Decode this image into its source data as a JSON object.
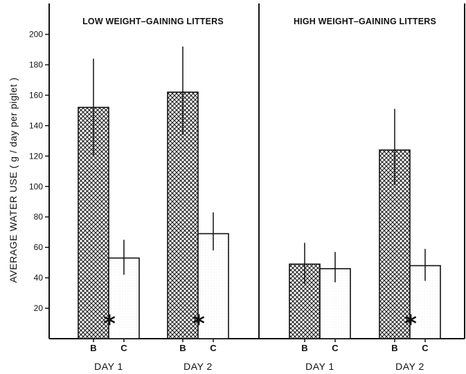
{
  "chart_data": {
    "type": "bar",
    "ylabel": "AVERAGE WATER USE ( g / day per piglet )",
    "ylim": [
      0,
      210
    ],
    "yticks": [
      20,
      40,
      60,
      80,
      100,
      120,
      140,
      160,
      180,
      200
    ],
    "bar_categories": [
      "B",
      "C"
    ],
    "panels": [
      {
        "title": "LOW WEIGHT–GAINING LITTERS",
        "days": [
          {
            "label": "DAY 1",
            "bars": [
              {
                "category": "B",
                "value": 152,
                "error_low": 120,
                "error_high": 184,
                "significant": false
              },
              {
                "category": "C",
                "value": 53,
                "error_low": 42,
                "error_high": 65,
                "significant": true
              }
            ]
          },
          {
            "label": "DAY 2",
            "bars": [
              {
                "category": "B",
                "value": 162,
                "error_low": 134,
                "error_high": 192,
                "significant": false
              },
              {
                "category": "C",
                "value": 69,
                "error_low": 58,
                "error_high": 83,
                "significant": true
              }
            ]
          }
        ]
      },
      {
        "title": "HIGH WEIGHT–GAINING LITTERS",
        "days": [
          {
            "label": "DAY 1",
            "bars": [
              {
                "category": "B",
                "value": 49,
                "error_low": 36,
                "error_high": 63,
                "significant": false
              },
              {
                "category": "C",
                "value": 46,
                "error_low": 37,
                "error_high": 57,
                "significant": false
              }
            ]
          },
          {
            "label": "DAY 2",
            "bars": [
              {
                "category": "B",
                "value": 124,
                "error_low": 101,
                "error_high": 151,
                "significant": false
              },
              {
                "category": "C",
                "value": 48,
                "error_low": 38,
                "error_high": 59,
                "significant": true
              }
            ]
          }
        ]
      }
    ],
    "significance_marker": "*",
    "grid": false,
    "legend": "none",
    "colors": {
      "B": "#2a2a2a",
      "C": "#ffffff",
      "axis": "#111111"
    }
  }
}
